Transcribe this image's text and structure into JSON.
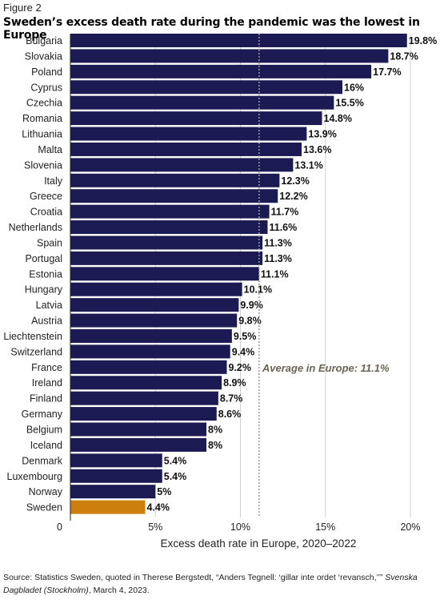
{
  "figure_label": "Figure 2",
  "title": "Sweden’s excess death rate during the pandemic was the lowest in Europe",
  "source": {
    "prefix": "Source: Statistics Sweden, quoted in Therese Bergstedt, “Anders Tegnell: ‘gillar inte ordet ‘revansch,’’” ",
    "publication": "Svenska Dagbladet (Stockholm)",
    "suffix": ", March 4, 2023."
  },
  "colors": {
    "bar": "#1c1a52",
    "highlight": "#cc7f0c",
    "grid": "#d0d0d0",
    "average_line": "#9a9a9a",
    "average_text": "#6b6256"
  },
  "chart_data": {
    "type": "bar",
    "orientation": "horizontal",
    "categories": [
      "Bulgaria",
      "Slovakia",
      "Poland",
      "Cyprus",
      "Czechia",
      "Romania",
      "Lithuania",
      "Malta",
      "Slovenia",
      "Italy",
      "Greece",
      "Croatia",
      "Netherlands",
      "Spain",
      "Portugal",
      "Estonia",
      "Hungary",
      "Latvia",
      "Austria",
      "Liechtenstein",
      "Switzerland",
      "France",
      "Ireland",
      "Finland",
      "Germany",
      "Belgium",
      "Iceland",
      "Denmark",
      "Luxembourg",
      "Norway",
      "Sweden"
    ],
    "values": [
      19.8,
      18.7,
      17.7,
      16,
      15.5,
      14.8,
      13.9,
      13.6,
      13.1,
      12.3,
      12.2,
      11.7,
      11.6,
      11.3,
      11.3,
      11.1,
      10.1,
      9.9,
      9.8,
      9.5,
      9.4,
      9.2,
      8.9,
      8.7,
      8.6,
      8,
      8,
      5.4,
      5.4,
      5,
      4.4
    ],
    "value_labels": [
      "19.8%",
      "18.7%",
      "17.7%",
      "16%",
      "15.5%",
      "14.8%",
      "13.9%",
      "13.6%",
      "13.1%",
      "12.3%",
      "12.2%",
      "11.7%",
      "11.6%",
      "11.3%",
      "11.3%",
      "11.1%",
      "10.1%",
      "9.9%",
      "9.8%",
      "9.5%",
      "9.4%",
      "9.2%",
      "8.9%",
      "8.7%",
      "8.6%",
      "8%",
      "8%",
      "5.4%",
      "5.4%",
      "5%",
      "4.4%"
    ],
    "highlight": "Sweden",
    "xlabel": "Excess death rate in Europe, 2020–2022",
    "xlim": [
      0,
      20.8
    ],
    "xticks": [
      0,
      5,
      10,
      15,
      20
    ],
    "xtick_labels": [
      "0",
      "5%",
      "10%",
      "15%",
      "20%"
    ],
    "grid": true,
    "average": {
      "value": 11.1,
      "label": "Average in Europe: 11.1%"
    }
  }
}
